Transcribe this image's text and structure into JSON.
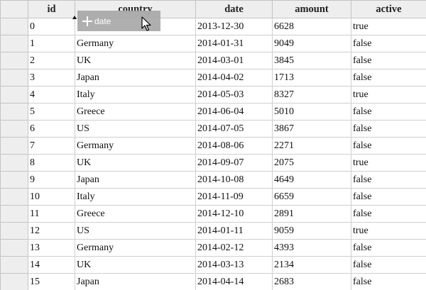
{
  "columns": {
    "id": "id",
    "country": "country",
    "date": "date",
    "amount": "amount",
    "active": "active"
  },
  "drag_ghost": {
    "label": "date",
    "icon": "plus-icon"
  },
  "cursor_icon": "arrow-cursor-icon",
  "rows": [
    {
      "id": "0",
      "country": "",
      "date": "2013-12-30",
      "amount": "6628",
      "active": "true"
    },
    {
      "id": "1",
      "country": "Germany",
      "date": "2014-01-31",
      "amount": "9049",
      "active": "false"
    },
    {
      "id": "2",
      "country": "UK",
      "date": "2014-03-01",
      "amount": "3845",
      "active": "false"
    },
    {
      "id": "3",
      "country": "Japan",
      "date": "2014-04-02",
      "amount": "1713",
      "active": "false"
    },
    {
      "id": "4",
      "country": "Italy",
      "date": "2014-05-03",
      "amount": "8327",
      "active": "true"
    },
    {
      "id": "5",
      "country": "Greece",
      "date": "2014-06-04",
      "amount": "5010",
      "active": "false"
    },
    {
      "id": "6",
      "country": "US",
      "date": "2014-07-05",
      "amount": "3867",
      "active": "false"
    },
    {
      "id": "7",
      "country": "Germany",
      "date": "2014-08-06",
      "amount": "2271",
      "active": "false"
    },
    {
      "id": "8",
      "country": "UK",
      "date": "2014-09-07",
      "amount": "2075",
      "active": "true"
    },
    {
      "id": "9",
      "country": "Japan",
      "date": "2014-10-08",
      "amount": "4649",
      "active": "false"
    },
    {
      "id": "10",
      "country": "Italy",
      "date": "2014-11-09",
      "amount": "6659",
      "active": "false"
    },
    {
      "id": "11",
      "country": "Greece",
      "date": "2014-12-10",
      "amount": "2891",
      "active": "false"
    },
    {
      "id": "12",
      "country": "US",
      "date": "2014-01-11",
      "amount": "9059",
      "active": "true"
    },
    {
      "id": "13",
      "country": "Germany",
      "date": "2014-02-12",
      "amount": "4393",
      "active": "false"
    },
    {
      "id": "14",
      "country": "UK",
      "date": "2014-03-13",
      "amount": "2134",
      "active": "false"
    },
    {
      "id": "15",
      "country": "Japan",
      "date": "2014-04-14",
      "amount": "2683",
      "active": "false"
    }
  ]
}
